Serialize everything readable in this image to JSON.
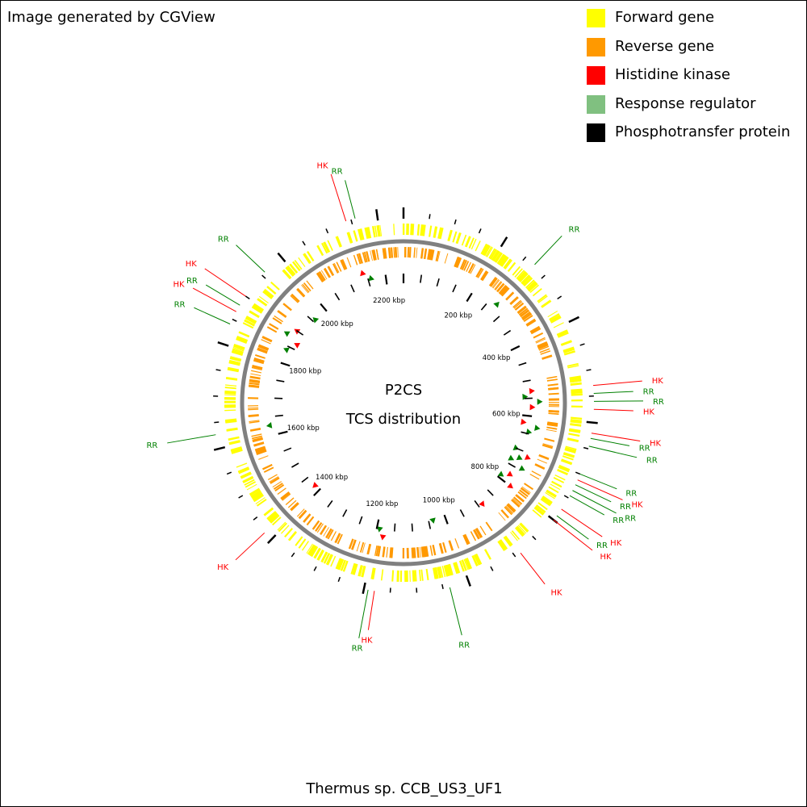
{
  "credit": "Image generated by CGView",
  "legend": [
    {
      "label": "Forward gene",
      "color": "#ffff00"
    },
    {
      "label": "Reverse gene",
      "color": "#ff9900"
    },
    {
      "label": "Histidine kinase",
      "color": "#ff0000"
    },
    {
      "label": "Response regulator",
      "color": "#80c080"
    },
    {
      "label": "Phosphotransfer protein",
      "color": "#000000"
    }
  ],
  "center_title": "P2CS",
  "center_subtitle": "TCS distribution",
  "genome_name": "Thermus sp. CCB_US3_UF1",
  "colors": {
    "forward": "#ffff00",
    "reverse": "#ff9900",
    "backbone": "#808080",
    "hk": "#ff0000",
    "rr": "#008000"
  },
  "genome": {
    "length_kbp": 2250,
    "tick_labels_kbp": [
      200,
      400,
      600,
      800,
      1000,
      1200,
      1400,
      1600,
      1800,
      2000,
      2200
    ]
  },
  "features": [
    {
      "label": "RR",
      "type": "rr",
      "pos_kbp": 272
    },
    {
      "label": "HK",
      "type": "hk",
      "pos_kbp": 530
    },
    {
      "label": "RR",
      "type": "rr",
      "pos_kbp": 545
    },
    {
      "label": "RR",
      "type": "rr",
      "pos_kbp": 560
    },
    {
      "label": "HK",
      "type": "hk",
      "pos_kbp": 575
    },
    {
      "label": "HK",
      "type": "hk",
      "pos_kbp": 620
    },
    {
      "label": "RR",
      "type": "rr",
      "pos_kbp": 630
    },
    {
      "label": "RR",
      "type": "rr",
      "pos_kbp": 645
    },
    {
      "label": "RR",
      "type": "rr",
      "pos_kbp": 700
    },
    {
      "label": "HK",
      "type": "hk",
      "pos_kbp": 712
    },
    {
      "label": "RR",
      "type": "rr",
      "pos_kbp": 722
    },
    {
      "label": "RR",
      "type": "rr",
      "pos_kbp": 734
    },
    {
      "label": "RR",
      "type": "rr",
      "pos_kbp": 745
    },
    {
      "label": "HK",
      "type": "hk",
      "pos_kbp": 775
    },
    {
      "label": "RR",
      "type": "rr",
      "pos_kbp": 790
    },
    {
      "label": "HK",
      "type": "hk",
      "pos_kbp": 800
    },
    {
      "label": "HK",
      "type": "hk",
      "pos_kbp": 888
    },
    {
      "label": "RR",
      "type": "rr",
      "pos_kbp": 1037
    },
    {
      "label": "HK",
      "type": "hk",
      "pos_kbp": 1180
    },
    {
      "label": "RR",
      "type": "rr",
      "pos_kbp": 1192
    },
    {
      "label": "HK",
      "type": "hk",
      "pos_kbp": 1418
    },
    {
      "label": "RR",
      "type": "rr",
      "pos_kbp": 1627
    },
    {
      "label": "RR",
      "type": "rr",
      "pos_kbp": 1840
    },
    {
      "label": "HK",
      "type": "hk",
      "pos_kbp": 1866
    },
    {
      "label": "RR",
      "type": "rr",
      "pos_kbp": 1880
    },
    {
      "label": "HK",
      "type": "hk",
      "pos_kbp": 1900
    },
    {
      "label": "RR",
      "type": "rr",
      "pos_kbp": 1958
    },
    {
      "label": "HK",
      "type": "hk",
      "pos_kbp": 2140
    },
    {
      "label": "RR",
      "type": "rr",
      "pos_kbp": 2158
    }
  ]
}
